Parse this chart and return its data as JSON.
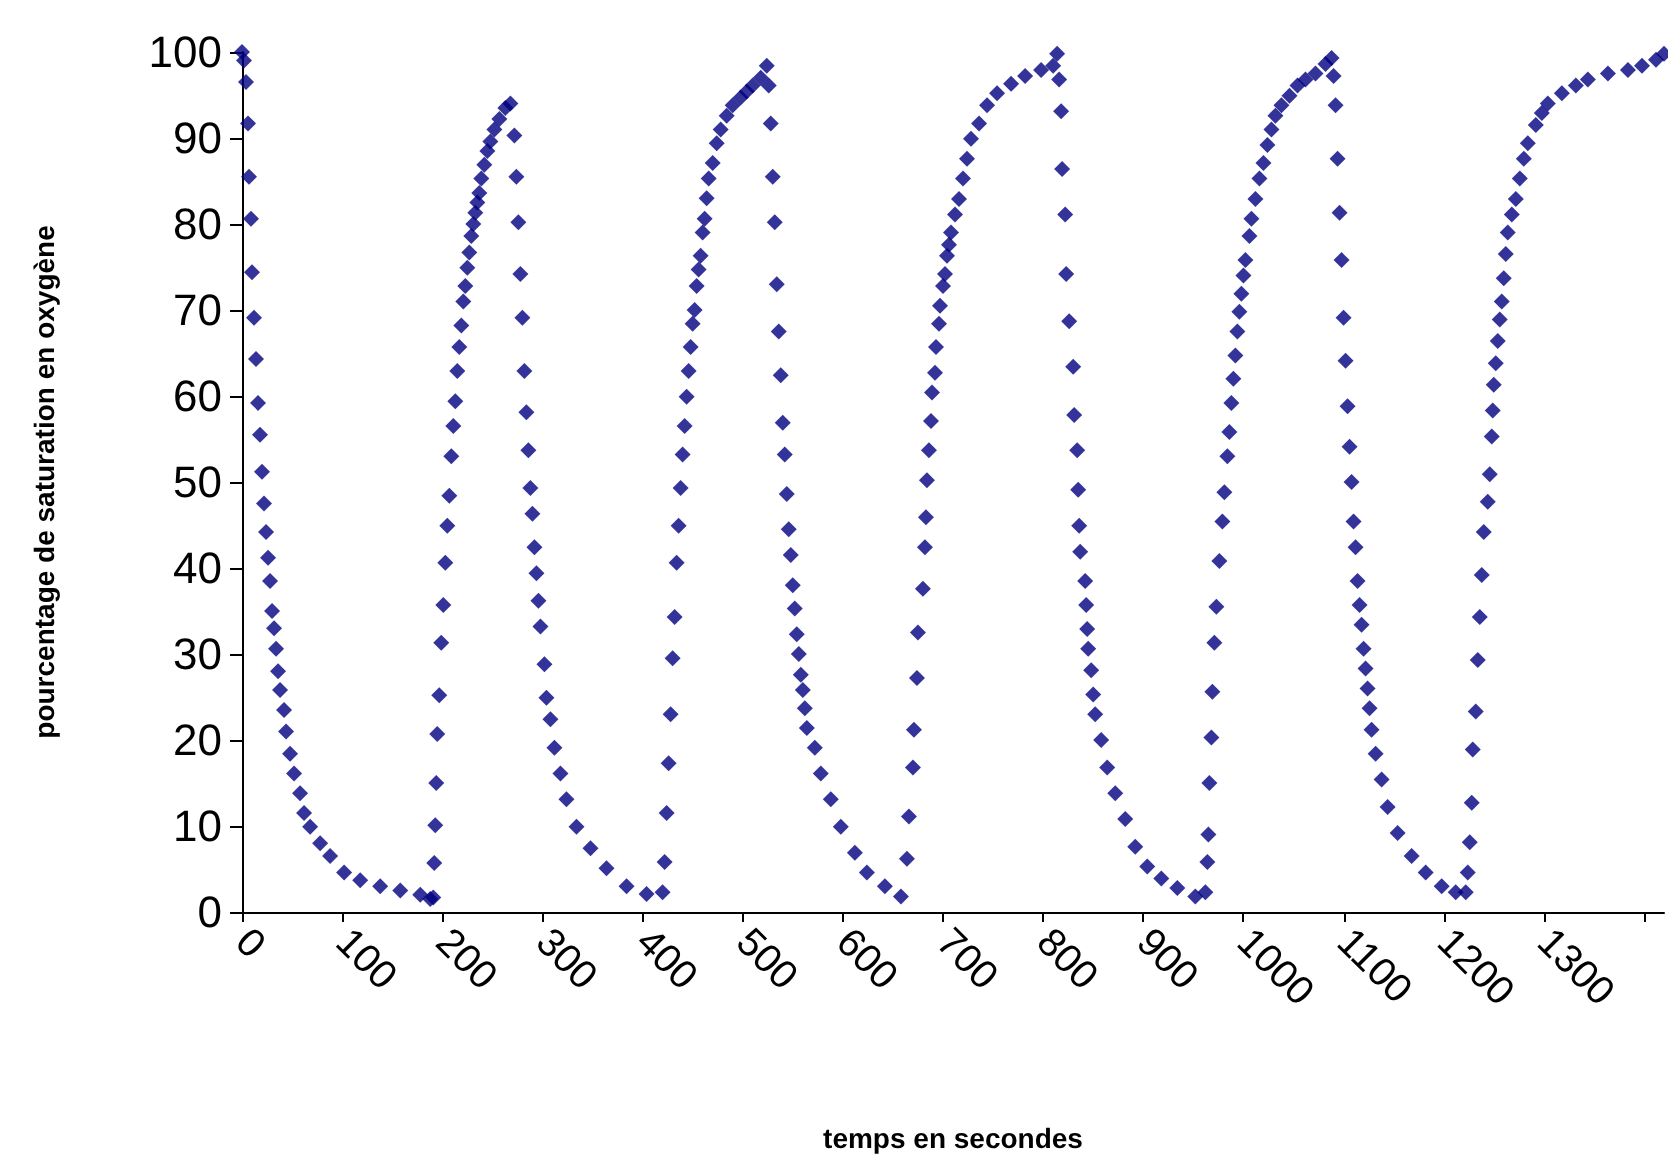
{
  "chart_data": {
    "type": "scatter",
    "xlabel": "temps en secondes",
    "ylabel": "pourcentage de saturation en oxygène",
    "marker": "diamond",
    "xlim": [
      0,
      1420
    ],
    "xticks": [
      0,
      100,
      200,
      300,
      400,
      500,
      600,
      700,
      800,
      900,
      1000,
      1100,
      1200,
      1300,
      {
        "value": 1400,
        "label": null
      }
    ],
    "ylim": [
      0,
      100
    ],
    "yticks": [
      0,
      10,
      20,
      30,
      40,
      50,
      60,
      70,
      80,
      90,
      100
    ],
    "series": [
      {
        "color": "#000080",
        "x": [
          0,
          2,
          4,
          6,
          7,
          9,
          10,
          12,
          14,
          16,
          18,
          20,
          22,
          24,
          26,
          28,
          30,
          32,
          34,
          36,
          38,
          42,
          44,
          48,
          52,
          58,
          62,
          68,
          78,
          88,
          102,
          118,
          138,
          158,
          178,
          188,
          191,
          192,
          193,
          194,
          195,
          197,
          199,
          201,
          203,
          205,
          207,
          209,
          211,
          213,
          215,
          217,
          219,
          221,
          223,
          225,
          227,
          229,
          231,
          233,
          235,
          237,
          239,
          242,
          245,
          248,
          252,
          257,
          263,
          268,
          272,
          274,
          276,
          278,
          280,
          282,
          284,
          286,
          288,
          290,
          292,
          294,
          296,
          298,
          302,
          304,
          308,
          312,
          318,
          324,
          334,
          348,
          364,
          384,
          404,
          420,
          422,
          424,
          426,
          428,
          430,
          432,
          434,
          436,
          438,
          440,
          442,
          444,
          446,
          448,
          450,
          452,
          454,
          456,
          458,
          460,
          462,
          464,
          466,
          470,
          474,
          478,
          484,
          490,
          498,
          504,
          510,
          518,
          524,
          526,
          528,
          530,
          532,
          534,
          536,
          538,
          540,
          542,
          544,
          546,
          548,
          550,
          552,
          554,
          556,
          558,
          560,
          562,
          564,
          572,
          578,
          588,
          598,
          612,
          624,
          642,
          658,
          664,
          666,
          670,
          671,
          674,
          675,
          680,
          682,
          683,
          684,
          686,
          688,
          689,
          692,
          693,
          696,
          697,
          700,
          702,
          704,
          706,
          708,
          712,
          716,
          720,
          724,
          728,
          736,
          744,
          754,
          768,
          782,
          798,
          810,
          814,
          816,
          818,
          819,
          822,
          823,
          826,
          830,
          831,
          834,
          835,
          836,
          837,
          842,
          843,
          844,
          845,
          848,
          850,
          852,
          858,
          864,
          872,
          882,
          892,
          904,
          918,
          934,
          952,
          962,
          964,
          965,
          966,
          968,
          969,
          971,
          973,
          976,
          979,
          981,
          984,
          986,
          988,
          990,
          992,
          994,
          996,
          998,
          1000,
          1002,
          1006,
          1008,
          1012,
          1016,
          1020,
          1024,
          1028,
          1032,
          1038,
          1046,
          1054,
          1062,
          1072,
          1082,
          1088,
          1090,
          1092,
          1094,
          1096,
          1098,
          1100,
          1102,
          1104,
          1106,
          1108,
          1110,
          1112,
          1114,
          1116,
          1118,
          1120,
          1122,
          1124,
          1126,
          1128,
          1132,
          1138,
          1144,
          1154,
          1168,
          1182,
          1198,
          1212,
          1222,
          1224,
          1226,
          1228,
          1229,
          1232,
          1234,
          1236,
          1238,
          1240,
          1244,
          1246,
          1248,
          1249,
          1250,
          1252,
          1254,
          1256,
          1258,
          1260,
          1262,
          1264,
          1268,
          1272,
          1276,
          1280,
          1284,
          1292,
          1298,
          1304,
          1318,
          1332,
          1344,
          1364,
          1384,
          1398,
          1412,
          1420
        ],
        "values": [
          100,
          99,
          96.5,
          91.7,
          85.5,
          80.6,
          74.4,
          69.1,
          64.3,
          59.2,
          55.5,
          51.2,
          47.5,
          44.2,
          41.2,
          38.5,
          35,
          33,
          30.6,
          28,
          25.8,
          23.5,
          21,
          18.4,
          16.1,
          13.8,
          11.5,
          9.9,
          8,
          6.5,
          4.6,
          3.7,
          3,
          2.5,
          2,
          1.5,
          1.7,
          5.7,
          10.1,
          15,
          20.7,
          25.2,
          31.3,
          35.7,
          40.6,
          44.9,
          48.4,
          53,
          56.5,
          59.4,
          62.9,
          65.7,
          68.2,
          71,
          72.8,
          74.9,
          76.7,
          78.6,
          80,
          81.3,
          82.5,
          83.6,
          85.3,
          86.9,
          88.5,
          89.6,
          91,
          92.2,
          93.5,
          94,
          90.3,
          85.5,
          80.2,
          74.2,
          69.1,
          62.9,
          58.1,
          53.7,
          49.3,
          46.3,
          42.4,
          39.4,
          36.2,
          33.2,
          28.8,
          24.9,
          22.4,
          19.1,
          16.1,
          13.1,
          9.9,
          7.4,
          5.1,
          3,
          2.1,
          2.3,
          5.8,
          11.5,
          17.3,
          23,
          29.5,
          34.3,
          40.6,
          44.9,
          49.3,
          53.2,
          56.5,
          59.9,
          62.9,
          65.7,
          68.4,
          70,
          72.8,
          74.7,
          76.3,
          79,
          80.6,
          83,
          85.3,
          87.1,
          89.4,
          91,
          92.6,
          93.8,
          94.7,
          95.4,
          96.1,
          97,
          98.4,
          96.1,
          91.7,
          85.5,
          80.2,
          73,
          67.5,
          62.4,
          56.9,
          53.2,
          48.6,
          44.5,
          41.5,
          38,
          35.3,
          32.3,
          30,
          27.6,
          25.8,
          23.7,
          21.4,
          19.1,
          16.1,
          13.1,
          9.9,
          6.9,
          4.6,
          3,
          1.8,
          6.2,
          11.1,
          16.8,
          21.2,
          27.2,
          32.5,
          37.6,
          42.4,
          45.9,
          50.2,
          53.7,
          57.1,
          60.4,
          62.7,
          65.7,
          68.4,
          70.5,
          72.8,
          74.2,
          76.3,
          77.6,
          79,
          81.1,
          82.9,
          85.3,
          87.6,
          89.9,
          91.7,
          93.8,
          95.2,
          96.3,
          97.2,
          97.9,
          98.4,
          99.8,
          96.8,
          93.1,
          86.4,
          81.1,
          74.2,
          68.7,
          63.4,
          57.8,
          53.7,
          49.1,
          44.9,
          41.9,
          38.5,
          35.7,
          32.9,
          30.6,
          28.1,
          25.3,
          23,
          20,
          16.8,
          13.8,
          10.8,
          7.6,
          5.3,
          3.9,
          2.8,
          1.8,
          2.3,
          5.8,
          9,
          15,
          20.3,
          25.6,
          31.3,
          35.5,
          40.8,
          45.4,
          48.8,
          53,
          55.8,
          59.2,
          62,
          64.7,
          67.5,
          69.8,
          71.9,
          74,
          75.8,
          78.6,
          80.6,
          82.9,
          85.3,
          87.1,
          89.2,
          91,
          92.6,
          93.8,
          94.9,
          96.1,
          96.8,
          97.5,
          98.6,
          99.3,
          97.2,
          93.8,
          87.6,
          81.3,
          75.8,
          69.1,
          64.1,
          58.8,
          54.1,
          50,
          45.4,
          42.4,
          38.5,
          35.7,
          33.4,
          30.6,
          28.3,
          26,
          23.7,
          21.2,
          18.4,
          15.4,
          12.2,
          9.2,
          6.5,
          4.6,
          3,
          2.3,
          2.3,
          4.6,
          8.1,
          12.7,
          18.9,
          23.3,
          29.3,
          34.3,
          39.2,
          44.2,
          47.7,
          50.9,
          55.3,
          58.3,
          61.3,
          63.8,
          66.4,
          68.9,
          71,
          73.7,
          76.5,
          79,
          81.1,
          82.9,
          85.3,
          87.6,
          89.4,
          91.5,
          92.9,
          94,
          95.2,
          96.1,
          96.8,
          97.5,
          97.9,
          98.4,
          99.1,
          99.8
        ]
      }
    ]
  }
}
